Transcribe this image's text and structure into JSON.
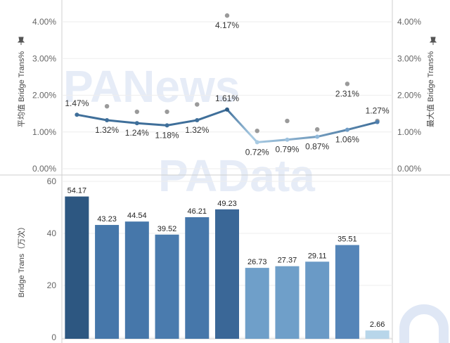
{
  "chart_data": [
    {
      "type": "line",
      "ylabel_left": "平均值 Bridge Trans%",
      "ylabel_right": "最大值 Bridge Trans%",
      "yticks": [
        "0.00%",
        "1.00%",
        "2.00%",
        "3.00%",
        "4.00%"
      ],
      "ylim": [
        0,
        4.3
      ],
      "series": [
        {
          "values": [
            1.47,
            1.32,
            1.24,
            1.18,
            1.32,
            1.61,
            0.72,
            0.79,
            0.87,
            1.06,
            1.27
          ],
          "labels": [
            "1.47%",
            "1.32%",
            "1.24%",
            "1.18%",
            "1.32%",
            "1.61%",
            "0.72%",
            "0.79%",
            "0.87%",
            "1.06%",
            "1.27%"
          ]
        }
      ],
      "max_points": {
        "values": [
          null,
          1.7,
          1.55,
          1.55,
          1.75,
          4.17,
          1.03,
          1.3,
          1.07,
          2.31,
          1.3
        ],
        "labels": [
          "",
          "",
          "",
          "",
          "",
          "4.17%",
          "",
          "",
          "",
          "2.31%",
          ""
        ]
      },
      "colors": {
        "line_dark": "#3f6f9a",
        "line_light": "#a9cbe3",
        "max_point": "#9a9a9a"
      }
    },
    {
      "type": "bar",
      "ylabel": "Bridge Trans（万次）",
      "yticks": [
        "0",
        "20",
        "40",
        "60"
      ],
      "ylim": [
        0,
        60
      ],
      "values": [
        54.17,
        43.23,
        44.54,
        39.52,
        46.21,
        49.23,
        26.73,
        27.37,
        29.11,
        35.51,
        2.66
      ],
      "labels": [
        "54.17",
        "43.23",
        "44.54",
        "39.52",
        "46.21",
        "49.23",
        "26.73",
        "27.37",
        "29.11",
        "35.51",
        "2.66"
      ],
      "colors": [
        "#2d5781",
        "#4677aa",
        "#4677aa",
        "#4a7bae",
        "#4677aa",
        "#3a6797",
        "#6f9fc9",
        "#6f9fc9",
        "#6a9ac6",
        "#5585b8",
        "#b8d6ea"
      ]
    }
  ],
  "watermarks": {
    "top": "PANews",
    "bottom": "PAData"
  }
}
